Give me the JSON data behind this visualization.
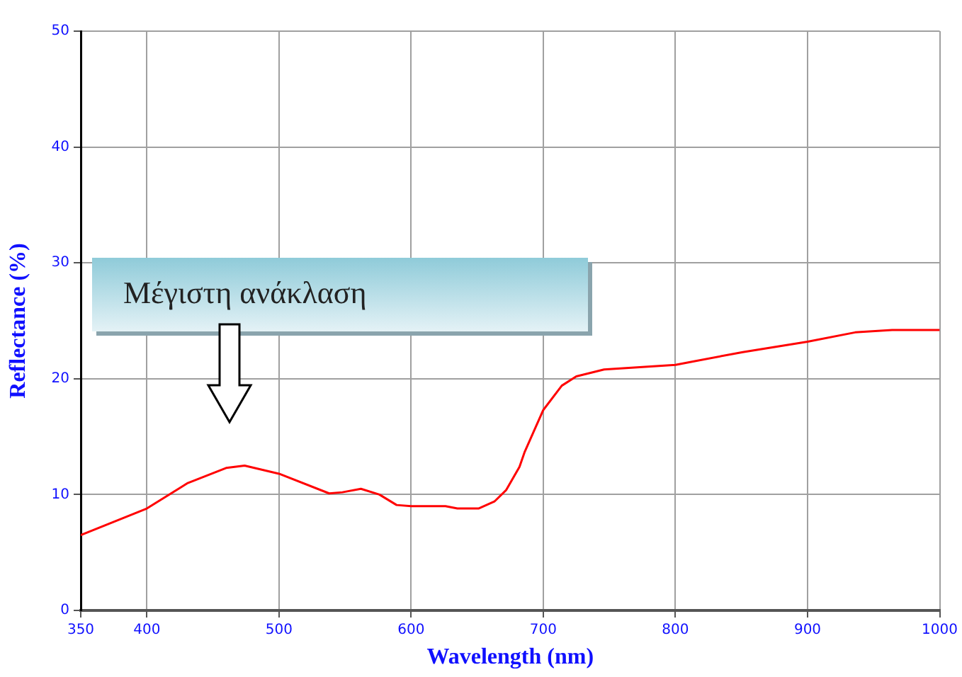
{
  "chart_data": {
    "type": "line",
    "xlabel": "Wavelength (nm)",
    "ylabel": "Reflectance (%)",
    "x": [
      350,
      400,
      431,
      460,
      474,
      500,
      538,
      548,
      562,
      576,
      589,
      600,
      626,
      635,
      651,
      663,
      672,
      682,
      686,
      693,
      700,
      714,
      725,
      746,
      800,
      851,
      900,
      936,
      964,
      1000
    ],
    "series": [
      {
        "color": "#ff0000",
        "values": [
          6.5,
          8.8,
          11.0,
          12.3,
          12.5,
          11.8,
          10.1,
          10.2,
          10.5,
          10.0,
          9.1,
          9.0,
          9.0,
          8.8,
          8.8,
          9.4,
          10.4,
          12.4,
          13.7,
          15.5,
          17.3,
          19.4,
          20.2,
          20.8,
          21.2,
          22.3,
          23.2,
          24.0,
          24.2,
          24.2
        ]
      }
    ],
    "xlim": [
      350,
      1000
    ],
    "xticks": [
      350,
      400,
      500,
      600,
      700,
      800,
      900,
      1000
    ],
    "ylim": [
      0,
      50
    ],
    "yticks": [
      0,
      10,
      20,
      30,
      40,
      50
    ],
    "grid": true,
    "legend": false,
    "marker": "none",
    "line_style": "solid",
    "annotations": [
      "Μέγιστη ανάκλαση"
    ]
  }
}
